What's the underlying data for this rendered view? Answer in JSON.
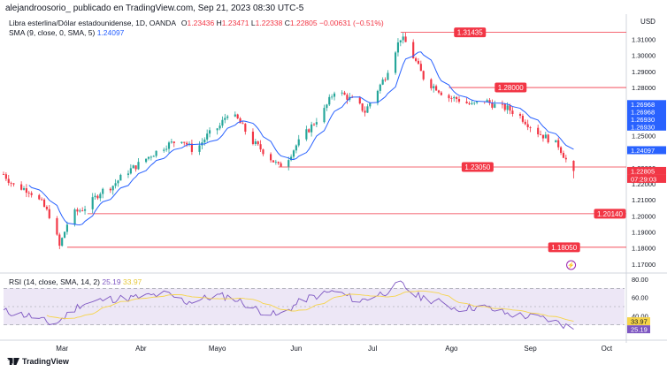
{
  "header": {
    "published": "alejandroosorio_ publicado en TradingView.com, Sep 21, 2023 08:30 UTC-5"
  },
  "legend": {
    "symbol": "Libra esterlina/Dólar estadounidense, 1D, OANDA",
    "o_label": "O",
    "o_val": "1.23436",
    "h_label": "H",
    "h_val": "1.23471",
    "l_label": "L",
    "l_val": "1.22338",
    "c_label": "C",
    "c_val": "1.22805",
    "change": "−0.00631 (−0.51%)",
    "sma_label": "SMA (9, close, 0, SMA, 5)",
    "sma_val": "1.24097"
  },
  "rsi_legend": {
    "label": "RSI (14, close, SMA, 14, 2)",
    "rsi_val": "25.19",
    "ma_val": "33.97"
  },
  "axis": {
    "currency": "USD"
  },
  "logo": {
    "text": "TradingView"
  },
  "colors": {
    "up": "#26a69a",
    "down": "#f23645",
    "sma": "#2962ff",
    "rsi": "#7e57c2",
    "rsi_ma": "#f6d44a",
    "level": "#f23645",
    "band": "#ede7f6"
  },
  "chart_data": {
    "type": "candlestick",
    "title": "Libra esterlina/Dólar estadounidense, 1D, OANDA",
    "xlabel": "",
    "ylabel": "USD",
    "ylim": [
      1.165,
      1.318
    ],
    "y_ticks": [
      "1.31000",
      "1.30000",
      "1.29000",
      "1.28000",
      "1.27000",
      "1.26000",
      "1.25000",
      "1.24000",
      "1.23000",
      "1.22000",
      "1.21000",
      "1.20000",
      "1.19000",
      "1.18000",
      "1.17000"
    ],
    "x_ticks": [
      {
        "label": "Mar",
        "day": 23
      },
      {
        "label": "Abr",
        "day": 54
      },
      {
        "label": "Mayo",
        "day": 84
      },
      {
        "label": "Jun",
        "day": 115
      },
      {
        "label": "Jul",
        "day": 145
      },
      {
        "label": "Ago",
        "day": 176
      },
      {
        "label": "Sep",
        "day": 207
      },
      {
        "label": "Oct",
        "day": 237
      }
    ],
    "x_range": [
      0,
      244
    ],
    "keypoints": [
      {
        "day": 0,
        "price": 1.226
      },
      {
        "day": 4,
        "price": 1.219
      },
      {
        "day": 10,
        "price": 1.216
      },
      {
        "day": 15,
        "price": 1.208
      },
      {
        "day": 19,
        "price": 1.198
      },
      {
        "day": 22,
        "price": 1.181
      },
      {
        "day": 25,
        "price": 1.195
      },
      {
        "day": 28,
        "price": 1.202
      },
      {
        "day": 33,
        "price": 1.206
      },
      {
        "day": 38,
        "price": 1.215
      },
      {
        "day": 43,
        "price": 1.219
      },
      {
        "day": 48,
        "price": 1.227
      },
      {
        "day": 52,
        "price": 1.231
      },
      {
        "day": 58,
        "price": 1.238
      },
      {
        "day": 64,
        "price": 1.244
      },
      {
        "day": 70,
        "price": 1.248
      },
      {
        "day": 75,
        "price": 1.24
      },
      {
        "day": 80,
        "price": 1.25
      },
      {
        "day": 85,
        "price": 1.256
      },
      {
        "day": 88,
        "price": 1.264
      },
      {
        "day": 92,
        "price": 1.26
      },
      {
        "day": 98,
        "price": 1.246
      },
      {
        "day": 103,
        "price": 1.239
      },
      {
        "day": 108,
        "price": 1.231
      },
      {
        "day": 111,
        "price": 1.234
      },
      {
        "day": 115,
        "price": 1.244
      },
      {
        "day": 120,
        "price": 1.254
      },
      {
        "day": 126,
        "price": 1.266
      },
      {
        "day": 130,
        "price": 1.278
      },
      {
        "day": 134,
        "price": 1.275
      },
      {
        "day": 139,
        "price": 1.27
      },
      {
        "day": 142,
        "price": 1.265
      },
      {
        "day": 146,
        "price": 1.276
      },
      {
        "day": 150,
        "price": 1.287
      },
      {
        "day": 153,
        "price": 1.3
      },
      {
        "day": 156,
        "price": 1.311
      },
      {
        "day": 158,
        "price": 1.308
      },
      {
        "day": 162,
        "price": 1.296
      },
      {
        "day": 166,
        "price": 1.283
      },
      {
        "day": 170,
        "price": 1.28
      },
      {
        "day": 174,
        "price": 1.274
      },
      {
        "day": 178,
        "price": 1.273
      },
      {
        "day": 184,
        "price": 1.269
      },
      {
        "day": 189,
        "price": 1.272
      },
      {
        "day": 194,
        "price": 1.268
      },
      {
        "day": 198,
        "price": 1.267
      },
      {
        "day": 203,
        "price": 1.262
      },
      {
        "day": 207,
        "price": 1.256
      },
      {
        "day": 210,
        "price": 1.252
      },
      {
        "day": 214,
        "price": 1.248
      },
      {
        "day": 218,
        "price": 1.244
      },
      {
        "day": 221,
        "price": 1.235
      },
      {
        "day": 224,
        "price": 1.228
      }
    ],
    "last": {
      "open": 1.23436,
      "high": 1.23471,
      "low": 1.22338,
      "close": 1.22805
    },
    "sma_value": 1.24097,
    "levels": [
      {
        "price": 1.31435,
        "label": "1.31435",
        "start_day": 156
      },
      {
        "price": 1.28,
        "label": "1.28000",
        "start_day": 175
      },
      {
        "price": 1.2305,
        "label": "1.23050",
        "start_day": 108
      },
      {
        "price": 1.2014,
        "label": "1.20140",
        "start_day": 33
      },
      {
        "price": 1.1805,
        "label": "1.18050",
        "start_day": 25
      }
    ],
    "price_tags": [
      {
        "price": 1.26968,
        "label": "1.26968"
      },
      {
        "price": 1.26968,
        "label": "1.26968",
        "row": 1
      },
      {
        "price": 1.2693,
        "label": "1.26930",
        "row": 2
      },
      {
        "price": 1.2693,
        "label": "1.26930",
        "row": 3
      },
      {
        "price": 1.24097,
        "label": "1.24097"
      },
      {
        "price": 1.22805,
        "label": "1.22805"
      }
    ],
    "countdown": "07:29:03",
    "rsi": {
      "ylim": [
        20,
        80
      ],
      "ticks": [
        "80.00",
        "60.00",
        "40.00"
      ],
      "upper": 70,
      "lower": 30,
      "keypoints": [
        {
          "day": 0,
          "v": 45
        },
        {
          "day": 10,
          "v": 40
        },
        {
          "day": 20,
          "v": 30
        },
        {
          "day": 30,
          "v": 52
        },
        {
          "day": 40,
          "v": 58
        },
        {
          "day": 52,
          "v": 60
        },
        {
          "day": 64,
          "v": 64
        },
        {
          "day": 72,
          "v": 55
        },
        {
          "day": 84,
          "v": 62
        },
        {
          "day": 90,
          "v": 60
        },
        {
          "day": 100,
          "v": 46
        },
        {
          "day": 108,
          "v": 40
        },
        {
          "day": 118,
          "v": 58
        },
        {
          "day": 130,
          "v": 67
        },
        {
          "day": 140,
          "v": 56
        },
        {
          "day": 150,
          "v": 66
        },
        {
          "day": 156,
          "v": 75
        },
        {
          "day": 162,
          "v": 62
        },
        {
          "day": 170,
          "v": 56
        },
        {
          "day": 178,
          "v": 48
        },
        {
          "day": 188,
          "v": 50
        },
        {
          "day": 198,
          "v": 42
        },
        {
          "day": 207,
          "v": 39
        },
        {
          "day": 214,
          "v": 36
        },
        {
          "day": 220,
          "v": 30
        },
        {
          "day": 224,
          "v": 25.19
        }
      ],
      "ma_last": 33.97,
      "rsi_last": 25.19
    }
  }
}
